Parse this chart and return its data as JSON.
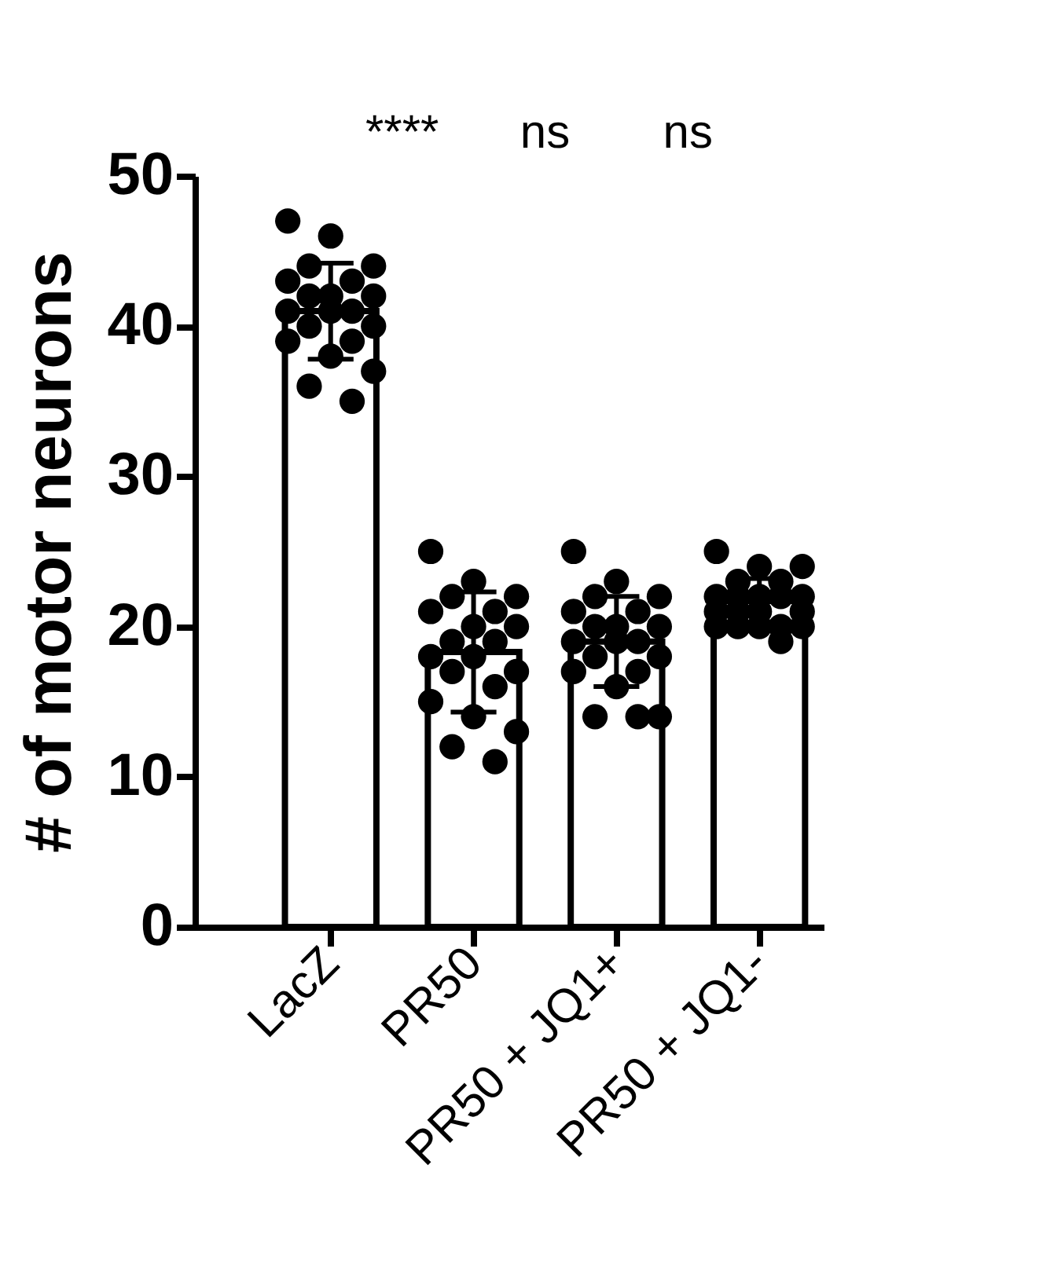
{
  "chart_data": {
    "type": "bar",
    "ylabel": "# of motor neurons",
    "categories": [
      "LacZ",
      "PR50",
      "PR50 + JQ1+",
      "PR50 + JQ1-"
    ],
    "ylim": [
      0,
      50
    ],
    "yticks": [
      0,
      10,
      20,
      30,
      40,
      50
    ],
    "grid": false,
    "marker": "circle",
    "annotations": [
      "****",
      "ns",
      "ns"
    ],
    "series": [
      {
        "color": "#ffffff",
        "values": [
          41,
          18.3,
          19,
          21.7
        ],
        "errors": [
          3.2,
          4,
          3,
          1.5
        ]
      },
      {
        "type": "scatter",
        "color": "#000000",
        "x": [
          "LacZ",
          "LacZ",
          "LacZ",
          "LacZ",
          "LacZ",
          "LacZ",
          "LacZ",
          "LacZ",
          "LacZ",
          "LacZ",
          "LacZ",
          "LacZ",
          "LacZ",
          "LacZ",
          "LacZ",
          "LacZ",
          "LacZ",
          "LacZ",
          "LacZ",
          "LacZ",
          "PR50",
          "PR50",
          "PR50",
          "PR50",
          "PR50",
          "PR50",
          "PR50",
          "PR50",
          "PR50",
          "PR50",
          "PR50",
          "PR50",
          "PR50",
          "PR50",
          "PR50",
          "PR50",
          "PR50",
          "PR50",
          "PR50",
          "PR50",
          "PR50 + JQ1+",
          "PR50 + JQ1+",
          "PR50 + JQ1+",
          "PR50 + JQ1+",
          "PR50 + JQ1+",
          "PR50 + JQ1+",
          "PR50 + JQ1+",
          "PR50 + JQ1+",
          "PR50 + JQ1+",
          "PR50 + JQ1+",
          "PR50 + JQ1+",
          "PR50 + JQ1+",
          "PR50 + JQ1+",
          "PR50 + JQ1+",
          "PR50 + JQ1+",
          "PR50 + JQ1+",
          "PR50 + JQ1+",
          "PR50 + JQ1+",
          "PR50 + JQ1+",
          "PR50 + JQ1+",
          "PR50 + JQ1-",
          "PR50 + JQ1-",
          "PR50 + JQ1-",
          "PR50 + JQ1-",
          "PR50 + JQ1-",
          "PR50 + JQ1-",
          "PR50 + JQ1-",
          "PR50 + JQ1-",
          "PR50 + JQ1-",
          "PR50 + JQ1-",
          "PR50 + JQ1-",
          "PR50 + JQ1-",
          "PR50 + JQ1-",
          "PR50 + JQ1-",
          "PR50 + JQ1-",
          "PR50 + JQ1-",
          "PR50 + JQ1-",
          "PR50 + JQ1-",
          "PR50 + JQ1-",
          "PR50 + JQ1-"
        ],
        "values": [
          47,
          46,
          44,
          44,
          43,
          43,
          42,
          42,
          42,
          41,
          41,
          41,
          40,
          40,
          39,
          39,
          38,
          37,
          36,
          35,
          25,
          23,
          22,
          22,
          21,
          21,
          20,
          20,
          19,
          19,
          18,
          18,
          17,
          17,
          16,
          15,
          14,
          13,
          12,
          11,
          25,
          23,
          22,
          22,
          21,
          21,
          20,
          20,
          20,
          19,
          19,
          19,
          18,
          18,
          17,
          17,
          16,
          14,
          14,
          14,
          25,
          24,
          24,
          23,
          23,
          22,
          22,
          22,
          22,
          22,
          21,
          21,
          21,
          21,
          20,
          20,
          20,
          20,
          20,
          19
        ]
      }
    ]
  }
}
